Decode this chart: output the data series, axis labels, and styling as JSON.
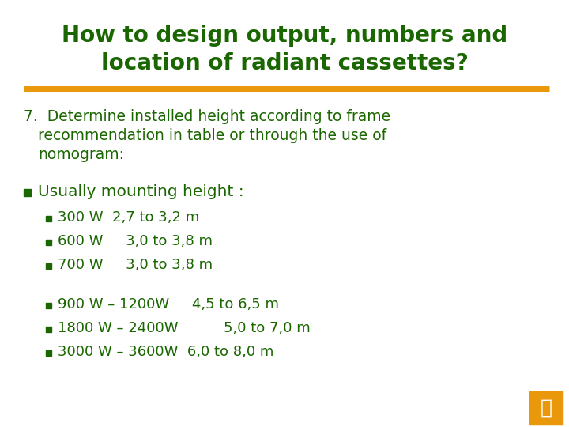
{
  "title_line1": "How to design output, numbers and",
  "title_line2": "location of radiant cassettes?",
  "title_color": "#1a6600",
  "title_fontsize": 20,
  "separator_color": "#e8980a",
  "bg_color": "#ffffff",
  "text_color": "#1a6600",
  "body_fontsize": 13.5,
  "bullet_fontsize": 14.5,
  "sub_bullet_fontsize": 13.0,
  "body_text_line1": "7.  Determine installed height according to frame",
  "body_text_line2": "    recommendation in table or through the use of",
  "body_text_line3": "    nomogram:",
  "bullet1": "Usually mounting height :",
  "sub_bullets_1": [
    "300 W  2,7 to 3,2 m",
    "600 W     3,0 to 3,8 m",
    "700 W     3,0 to 3,8 m"
  ],
  "sub_bullets_2": [
    "900 W – 1200W     4,5 to 6,5 m",
    "1800 W – 2400W          5,0 to 7,0 m",
    "3000 W – 3600W  6,0 to 8,0 m"
  ],
  "icon_color": "#e8980a",
  "font_family": "DejaVu Sans"
}
